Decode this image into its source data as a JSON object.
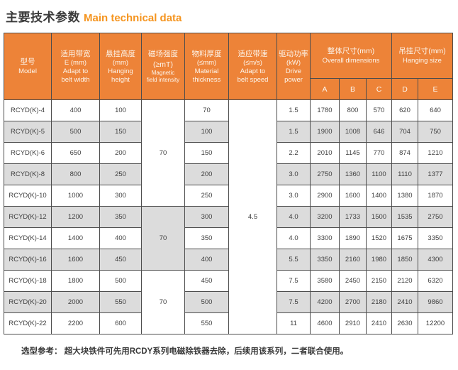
{
  "page": {
    "title_zh": "主要技术参数",
    "title_en": "Main technical data",
    "footer_note": "选型参考： 超大块铁件可先用RCDY系列电磁除铁器去除，后续用该系列，二者联合使用。"
  },
  "colors": {
    "header_orange": "#ED8338",
    "header_text": "#FCF5EC",
    "row_gray": "#DCDCDC",
    "row_white": "#FFFFFF",
    "grid_border": "#4D4D4D",
    "title_en_orange": "#F5941E",
    "cell_text": "#3F3F3F"
  },
  "table": {
    "columns": [
      {
        "id": "model",
        "lines": [
          "型号",
          "Model"
        ]
      },
      {
        "id": "belt-width",
        "lines": [
          "适用带宽",
          "E (mm)",
          "Adapt to",
          "belt width"
        ]
      },
      {
        "id": "hanging-height",
        "lines": [
          "悬挂高度",
          "(mm)",
          "Hanging",
          "height"
        ]
      },
      {
        "id": "magnetic",
        "lines": [
          "磁场强度",
          "(≥mT)",
          "Magnetic",
          "field intensity"
        ]
      },
      {
        "id": "material",
        "lines": [
          "物料厚度",
          "(≤mm)",
          "Material",
          "thickness"
        ]
      },
      {
        "id": "belt-speed",
        "lines": [
          "适应带速",
          "(≤m/s)",
          "Adapt to",
          "belt speed"
        ]
      },
      {
        "id": "drive-power",
        "lines": [
          "驱动功率",
          "(kW)",
          "Drive",
          "power"
        ]
      },
      {
        "id": "overall-dims",
        "lines": [
          "整体尺寸(mm)",
          "Overall dimensions"
        ]
      },
      {
        "id": "hanging-size",
        "lines": [
          "吊挂尺寸(mm)",
          "Hanging size"
        ]
      }
    ],
    "sub_headers": [
      "A",
      "B",
      "C",
      "D",
      "E"
    ],
    "magnetic_groups": [
      {
        "start": 0,
        "span": 5,
        "value": "70",
        "shade": "light"
      },
      {
        "start": 5,
        "span": 3,
        "value": "70",
        "shade": "dark"
      },
      {
        "start": 8,
        "span": 3,
        "value": "70",
        "shade": "light"
      }
    ],
    "belt_speed": {
      "start": 0,
      "span": 11,
      "value": "4.5",
      "shade": "light"
    },
    "rows": [
      {
        "model": "RCYD(K)-4",
        "belt_width": "400",
        "hanging_height": "100",
        "material_thickness": "70",
        "drive_power": "1.5",
        "a": "1780",
        "b": "800",
        "c": "570",
        "d": "620",
        "e": "640"
      },
      {
        "model": "RCYD(K)-5",
        "belt_width": "500",
        "hanging_height": "150",
        "material_thickness": "100",
        "drive_power": "1.5",
        "a": "1900",
        "b": "1008",
        "c": "646",
        "d": "704",
        "e": "750"
      },
      {
        "model": "RCYD(K)-6",
        "belt_width": "650",
        "hanging_height": "200",
        "material_thickness": "150",
        "drive_power": "2.2",
        "a": "2010",
        "b": "1145",
        "c": "770",
        "d": "874",
        "e": "1210"
      },
      {
        "model": "RCYD(K)-8",
        "belt_width": "800",
        "hanging_height": "250",
        "material_thickness": "200",
        "drive_power": "3.0",
        "a": "2750",
        "b": "1360",
        "c": "1100",
        "d": "1110",
        "e": "1377"
      },
      {
        "model": "RCYD(K)-10",
        "belt_width": "1000",
        "hanging_height": "300",
        "material_thickness": "250",
        "drive_power": "3.0",
        "a": "2900",
        "b": "1600",
        "c": "1400",
        "d": "1380",
        "e": "1870"
      },
      {
        "model": "RCYD(K)-12",
        "belt_width": "1200",
        "hanging_height": "350",
        "material_thickness": "300",
        "drive_power": "4.0",
        "a": "3200",
        "b": "1733",
        "c": "1500",
        "d": "1535",
        "e": "2750"
      },
      {
        "model": "RCYD(K)-14",
        "belt_width": "1400",
        "hanging_height": "400",
        "material_thickness": "350",
        "drive_power": "4.0",
        "a": "3300",
        "b": "1890",
        "c": "1520",
        "d": "1675",
        "e": "3350"
      },
      {
        "model": "RCYD(K)-16",
        "belt_width": "1600",
        "hanging_height": "450",
        "material_thickness": "400",
        "drive_power": "5.5",
        "a": "3350",
        "b": "2160",
        "c": "1980",
        "d": "1850",
        "e": "4300"
      },
      {
        "model": "RCYD(K)-18",
        "belt_width": "1800",
        "hanging_height": "500",
        "material_thickness": "450",
        "drive_power": "7.5",
        "a": "3580",
        "b": "2450",
        "c": "2150",
        "d": "2120",
        "e": "6320"
      },
      {
        "model": "RCYD(K)-20",
        "belt_width": "2000",
        "hanging_height": "550",
        "material_thickness": "500",
        "drive_power": "7.5",
        "a": "4200",
        "b": "2700",
        "c": "2180",
        "d": "2410",
        "e": "9860"
      },
      {
        "model": "RCYD(K)-22",
        "belt_width": "2200",
        "hanging_height": "600",
        "material_thickness": "550",
        "drive_power": "11",
        "a": "4600",
        "b": "2910",
        "c": "2410",
        "d": "2630",
        "e": "12200"
      }
    ]
  }
}
